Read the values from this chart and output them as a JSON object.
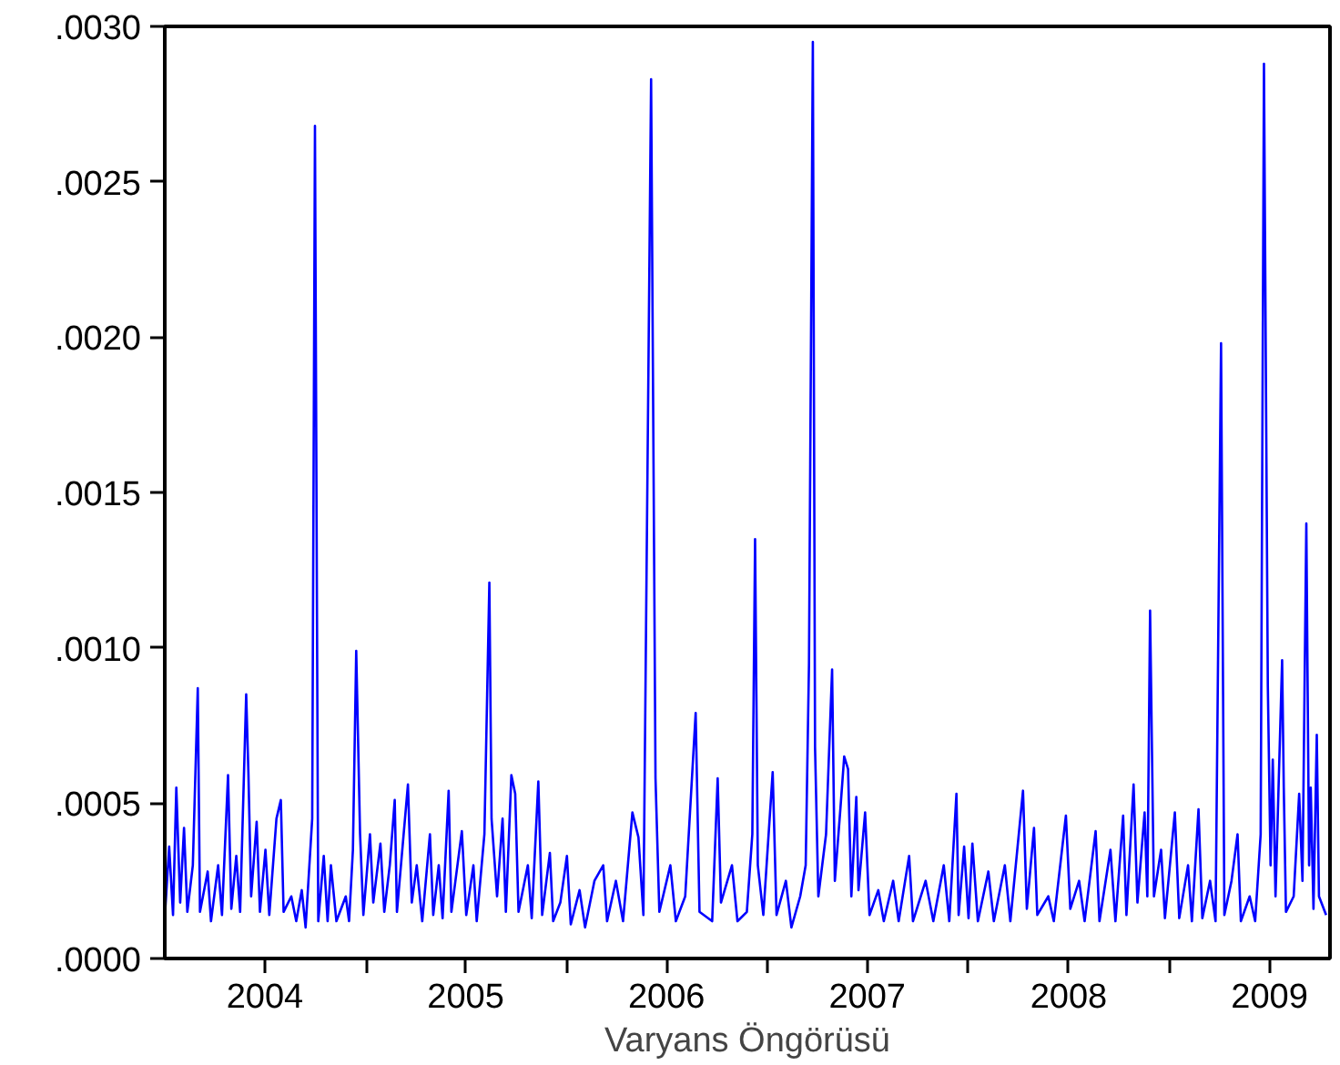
{
  "chart_data": {
    "type": "line",
    "xlabel": "Varyans Öngörüsü",
    "x": [
      "2004-01-02",
      "2004-01-09",
      "2004-01-16",
      "2004-01-22",
      "2004-01-29",
      "2004-02-05",
      "2004-02-11",
      "2004-02-21",
      "2004-03-01",
      "2004-03-05",
      "2004-03-19",
      "2004-03-25",
      "2004-04-07",
      "2004-04-14",
      "2004-04-25",
      "2004-05-01",
      "2004-05-10",
      "2004-05-17",
      "2004-05-28",
      "2004-06-01",
      "2004-06-06",
      "2004-06-16",
      "2004-06-22",
      "2004-07-02",
      "2004-07-09",
      "2004-07-22",
      "2004-07-30",
      "2004-08-04",
      "2004-08-18",
      "2004-08-27",
      "2004-09-06",
      "2004-09-13",
      "2004-09-25",
      "2004-09-30",
      "2004-10-06",
      "2004-10-16",
      "2004-10-23",
      "2004-10-29",
      "2004-11-08",
      "2004-11-25",
      "2004-12-01",
      "2004-12-08",
      "2004-12-14",
      "2004-12-21",
      "2004-12-27",
      "2005-01-08",
      "2005-01-14",
      "2005-01-27",
      "2005-02-03",
      "2005-02-13",
      "2005-02-22",
      "2005-02-26",
      "2005-03-18",
      "2005-03-25",
      "2005-04-03",
      "2005-04-13",
      "2005-04-27",
      "2005-05-03",
      "2005-05-13",
      "2005-05-20",
      "2005-05-31",
      "2005-06-05",
      "2005-06-24",
      "2005-07-02",
      "2005-07-15",
      "2005-07-21",
      "2005-08-04",
      "2005-08-13",
      "2005-08-17",
      "2005-08-27",
      "2005-09-06",
      "2005-09-12",
      "2005-09-22",
      "2005-09-29",
      "2005-10-05",
      "2005-10-22",
      "2005-10-29",
      "2005-11-10",
      "2005-11-17",
      "2005-12-01",
      "2005-12-07",
      "2005-12-20",
      "2006-01-01",
      "2006-01-08",
      "2006-01-24",
      "2006-02-03",
      "2006-02-20",
      "2006-03-08",
      "2006-03-15",
      "2006-03-31",
      "2006-04-13",
      "2006-04-30",
      "2006-05-11",
      "2006-05-20",
      "2006-06-03",
      "2006-06-11",
      "2006-06-18",
      "2006-07-08",
      "2006-07-18",
      "2006-08-04",
      "2006-08-23",
      "2006-08-30",
      "2006-09-22",
      "2006-10-02",
      "2006-10-08",
      "2006-10-28",
      "2006-11-07",
      "2006-11-24",
      "2006-12-04",
      "2006-12-09",
      "2006-12-14",
      "2006-12-24",
      "2007-01-10",
      "2007-01-17",
      "2007-02-03",
      "2007-02-13",
      "2007-03-01",
      "2007-03-11",
      "2007-03-17",
      "2007-03-24",
      "2007-03-28",
      "2007-04-03",
      "2007-04-17",
      "2007-04-28",
      "2007-05-03",
      "2007-05-13",
      "2007-05-20",
      "2007-05-27",
      "2007-06-02",
      "2007-06-11",
      "2007-06-15",
      "2007-06-27",
      "2007-07-05",
      "2007-07-21",
      "2007-07-31",
      "2007-08-17",
      "2007-08-27",
      "2007-09-15",
      "2007-09-22",
      "2007-10-15",
      "2007-10-29",
      "2007-11-17",
      "2007-11-27",
      "2007-12-10",
      "2007-12-14",
      "2007-12-24",
      "2008-01-01",
      "2008-01-08",
      "2008-01-18",
      "2008-02-06",
      "2008-02-16",
      "2008-03-07",
      "2008-03-17",
      "2008-04-09",
      "2008-04-16",
      "2008-04-29",
      "2008-05-05",
      "2008-05-25",
      "2008-06-04",
      "2008-06-26",
      "2008-07-04",
      "2008-07-20",
      "2008-07-30",
      "2008-08-19",
      "2008-08-26",
      "2008-09-15",
      "2008-09-24",
      "2008-10-08",
      "2008-10-14",
      "2008-10-27",
      "2008-11-03",
      "2008-11-16",
      "2008-11-21",
      "2008-11-26",
      "2008-12-03",
      "2008-12-16",
      "2008-12-23",
      "2009-01-10",
      "2009-01-18",
      "2009-02-03",
      "2009-02-10",
      "2009-02-22",
      "2009-03-01",
      "2009-03-15",
      "2009-03-25",
      "2009-04-04",
      "2009-04-10",
      "2009-04-23",
      "2009-05-04",
      "2009-05-10",
      "2009-05-26",
      "2009-06-05",
      "2009-06-15",
      "2009-06-21",
      "2009-06-28",
      "2009-07-03",
      "2009-07-07",
      "2009-07-12",
      "2009-07-24",
      "2009-07-27",
      "2009-07-31",
      "2009-08-14",
      "2009-08-24",
      "2009-08-30",
      "2009-09-06",
      "2009-09-11",
      "2009-09-14",
      "2009-09-19",
      "2009-09-25",
      "2009-09-29",
      "2009-10-12"
    ],
    "series": [
      {
        "color": "#0000ff",
        "values": [
          0.00016,
          0.00036,
          0.00014,
          0.00055,
          0.00018,
          0.00042,
          0.00015,
          0.0003,
          0.00087,
          0.00015,
          0.00028,
          0.00012,
          0.0003,
          0.00014,
          0.00059,
          0.00016,
          0.00033,
          0.00015,
          0.00085,
          0.0006,
          0.0002,
          0.00044,
          0.00015,
          0.00035,
          0.00014,
          0.00045,
          0.00051,
          0.00015,
          0.0002,
          0.00012,
          0.00022,
          0.0001,
          0.00045,
          0.00268,
          0.00012,
          0.00033,
          0.00012,
          0.0003,
          0.00012,
          0.0002,
          0.00012,
          0.00035,
          0.00099,
          0.0004,
          0.00014,
          0.0004,
          0.00018,
          0.00037,
          0.00015,
          0.0003,
          0.00051,
          0.00015,
          0.00056,
          0.00018,
          0.0003,
          0.00012,
          0.0004,
          0.00014,
          0.0003,
          0.00013,
          0.00054,
          0.00015,
          0.00041,
          0.00014,
          0.0003,
          0.00012,
          0.0004,
          0.00121,
          0.00045,
          0.0002,
          0.00045,
          0.00015,
          0.00059,
          0.00053,
          0.00015,
          0.0003,
          0.00013,
          0.00057,
          0.00014,
          0.00034,
          0.00012,
          0.00018,
          0.00033,
          0.00011,
          0.00022,
          0.0001,
          0.00025,
          0.0003,
          0.00012,
          0.00025,
          0.00012,
          0.00047,
          0.00039,
          0.00014,
          0.00283,
          0.00058,
          0.00015,
          0.0003,
          0.00012,
          0.0002,
          0.00079,
          0.00015,
          0.00012,
          0.00058,
          0.00018,
          0.0003,
          0.00012,
          0.00015,
          0.0004,
          0.00135,
          0.0003,
          0.00014,
          0.0006,
          0.00014,
          0.00025,
          0.0001,
          0.0002,
          0.0003,
          0.00095,
          0.00295,
          0.00068,
          0.0002,
          0.0004,
          0.00093,
          0.00025,
          0.00048,
          0.00065,
          0.00061,
          0.0002,
          0.00052,
          0.00022,
          0.00047,
          0.00014,
          0.00022,
          0.00012,
          0.00025,
          0.00012,
          0.00033,
          0.00012,
          0.00025,
          0.00012,
          0.0003,
          0.00012,
          0.00053,
          0.00014,
          0.00036,
          0.00013,
          0.00037,
          0.00012,
          0.00028,
          0.00012,
          0.0003,
          0.00012,
          0.00054,
          0.00016,
          0.00042,
          0.00014,
          0.0002,
          0.00012,
          0.00046,
          0.00016,
          0.00025,
          0.00012,
          0.00041,
          0.00012,
          0.00035,
          0.00012,
          0.00046,
          0.00014,
          0.00056,
          0.00018,
          0.00047,
          0.0002,
          0.00112,
          0.0002,
          0.00035,
          0.00013,
          0.00047,
          0.00013,
          0.0003,
          0.00012,
          0.00048,
          0.00013,
          0.00025,
          0.00012,
          0.00198,
          0.00014,
          0.00025,
          0.0004,
          0.00012,
          0.0002,
          0.00012,
          0.0004,
          0.00288,
          0.00088,
          0.0003,
          0.00064,
          0.0002,
          0.00096,
          0.00055,
          0.00015,
          0.0002,
          0.00053,
          0.00025,
          0.0014,
          0.0003,
          0.00055,
          0.00016,
          0.00072,
          0.0002,
          0.00014
        ]
      }
    ],
    "xlim": [
      "2004-01-01",
      "2009-10-19"
    ],
    "xticks": [
      {
        "value": "2004-07-01",
        "label": "2004"
      },
      {
        "value": "2005-01-01",
        "label": null
      },
      {
        "value": "2005-07-01",
        "label": "2005"
      },
      {
        "value": "2006-01-01",
        "label": null
      },
      {
        "value": "2006-07-01",
        "label": "2006"
      },
      {
        "value": "2007-01-01",
        "label": null
      },
      {
        "value": "2007-07-01",
        "label": "2007"
      },
      {
        "value": "2008-01-01",
        "label": null
      },
      {
        "value": "2008-07-01",
        "label": "2008"
      },
      {
        "value": "2009-01-01",
        "label": null
      },
      {
        "value": "2009-07-01",
        "label": "2009"
      }
    ],
    "ylim": [
      0,
      0.003
    ],
    "yticks": [
      {
        "value": 0,
        "label": ".0000"
      },
      {
        "value": 0.0005,
        "label": ".0005"
      },
      {
        "value": 0.001,
        "label": ".0010"
      },
      {
        "value": 0.0015,
        "label": ".0015"
      },
      {
        "value": 0.002,
        "label": ".0020"
      },
      {
        "value": 0.0025,
        "label": ".0025"
      },
      {
        "value": 0.003,
        "label": ".0030"
      }
    ],
    "grid": false,
    "marker": "none",
    "line_style": "solid"
  }
}
